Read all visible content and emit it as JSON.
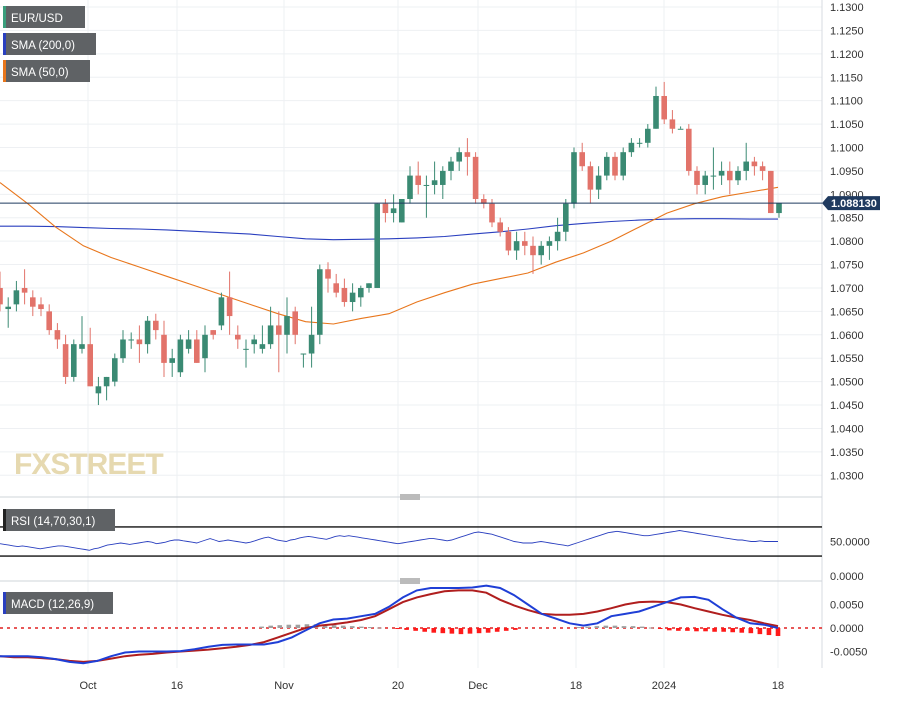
{
  "chart_data": {
    "type": "candlestick",
    "symbol": "EUR/USD",
    "watermark": "FXSTREET",
    "last_price": "1.088130",
    "x_labels": [
      "Oct",
      "16",
      "Nov",
      "20",
      "Dec",
      "18",
      "2024",
      "18"
    ],
    "price_ylim": [
      1.026,
      1.1315
    ],
    "price_ticks": [
      "1.1300",
      "1.1250",
      "1.1200",
      "1.1150",
      "1.1100",
      "1.1050",
      "1.1000",
      "1.0950",
      "1.0900",
      "1.0850",
      "1.0800",
      "1.0750",
      "1.0700",
      "1.0650",
      "1.0600",
      "1.0550",
      "1.0500",
      "1.0450",
      "1.0400",
      "1.0350",
      "1.0300"
    ],
    "indicators": [
      {
        "label": "SMA (200,0)",
        "color": "#2a3fbf"
      },
      {
        "label": "SMA (50,0)",
        "color": "#e8761c"
      }
    ],
    "candles": [
      [
        1.07,
        1.0735,
        1.065,
        1.0665
      ],
      [
        1.0655,
        1.068,
        1.0615,
        1.066
      ],
      [
        1.0665,
        1.0715,
        1.065,
        1.0695
      ],
      [
        1.07,
        1.074,
        1.0665,
        1.069
      ],
      [
        1.068,
        1.0695,
        1.064,
        1.066
      ],
      [
        1.0665,
        1.068,
        1.064,
        1.0655
      ],
      [
        1.065,
        1.0665,
        1.06,
        1.061
      ],
      [
        1.061,
        1.0625,
        1.057,
        1.059
      ],
      [
        1.058,
        1.06,
        1.0495,
        1.051
      ],
      [
        1.051,
        1.059,
        1.05,
        1.058
      ],
      [
        1.057,
        1.064,
        1.056,
        1.058
      ],
      [
        1.058,
        1.0615,
        1.049,
        1.049
      ],
      [
        1.0475,
        1.051,
        1.045,
        1.049
      ],
      [
        1.049,
        1.051,
        1.046,
        1.051
      ],
      [
        1.05,
        1.056,
        1.049,
        1.055
      ],
      [
        1.055,
        1.061,
        1.054,
        1.059
      ],
      [
        1.059,
        1.0605,
        1.057,
        1.059
      ],
      [
        1.059,
        1.062,
        1.054,
        1.058
      ],
      [
        1.058,
        1.064,
        1.056,
        1.063
      ],
      [
        1.063,
        1.0645,
        1.059,
        1.061
      ],
      [
        1.06,
        1.063,
        1.051,
        1.054
      ],
      [
        1.054,
        1.057,
        1.051,
        1.055
      ],
      [
        1.052,
        1.06,
        1.051,
        1.059
      ],
      [
        1.057,
        1.061,
        1.056,
        1.059
      ],
      [
        1.059,
        1.061,
        1.054,
        1.054
      ],
      [
        1.055,
        1.062,
        1.052,
        1.06
      ],
      [
        1.061,
        1.061,
        1.059,
        1.06
      ],
      [
        1.062,
        1.069,
        1.061,
        1.068
      ],
      [
        1.068,
        1.0735,
        1.06,
        1.064
      ],
      [
        1.06,
        1.062,
        1.057,
        1.059
      ],
      [
        1.057,
        1.059,
        1.053,
        1.057
      ],
      [
        1.058,
        1.06,
        1.056,
        1.059
      ],
      [
        1.057,
        1.062,
        1.056,
        1.058
      ],
      [
        1.058,
        1.066,
        1.057,
        1.062
      ],
      [
        1.062,
        1.065,
        1.052,
        1.06
      ],
      [
        1.06,
        1.068,
        1.056,
        1.064
      ],
      [
        1.065,
        1.066,
        1.058,
        1.06
      ],
      [
        1.056,
        1.056,
        1.053,
        1.056
      ],
      [
        1.056,
        1.066,
        1.053,
        1.06
      ],
      [
        1.06,
        1.075,
        1.058,
        1.074
      ],
      [
        1.074,
        1.0755,
        1.069,
        1.072
      ],
      [
        1.071,
        1.073,
        1.068,
        1.069
      ],
      [
        1.07,
        1.072,
        1.066,
        1.067
      ],
      [
        1.067,
        1.071,
        1.065,
        1.069
      ],
      [
        1.068,
        1.0705,
        1.066,
        1.07
      ],
      [
        1.07,
        1.071,
        1.069,
        1.071
      ],
      [
        1.07,
        1.088,
        1.07,
        1.088
      ],
      [
        1.088,
        1.089,
        1.084,
        1.086
      ],
      [
        1.086,
        1.09,
        1.084,
        1.087
      ],
      [
        1.084,
        1.089,
        1.084,
        1.089
      ],
      [
        1.089,
        1.096,
        1.088,
        1.094
      ],
      [
        1.094,
        1.097,
        1.09,
        1.092
      ],
      [
        1.092,
        1.094,
        1.085,
        1.092
      ],
      [
        1.092,
        1.097,
        1.09,
        1.093
      ],
      [
        1.092,
        1.096,
        1.089,
        1.095
      ],
      [
        1.095,
        1.098,
        1.093,
        1.097
      ],
      [
        1.097,
        1.1,
        1.095,
        1.099
      ],
      [
        1.099,
        1.102,
        1.094,
        1.098
      ],
      [
        1.098,
        1.099,
        1.088,
        1.089
      ],
      [
        1.089,
        1.09,
        1.087,
        1.088
      ],
      [
        1.088,
        1.089,
        1.083,
        1.084
      ],
      [
        1.084,
        1.085,
        1.081,
        1.082
      ],
      [
        1.082,
        1.083,
        1.077,
        1.078
      ],
      [
        1.078,
        1.082,
        1.076,
        1.08
      ],
      [
        1.08,
        1.082,
        1.077,
        1.079
      ],
      [
        1.079,
        1.081,
        1.073,
        1.077
      ],
      [
        1.077,
        1.08,
        1.075,
        1.079
      ],
      [
        1.079,
        1.081,
        1.076,
        1.08
      ],
      [
        1.08,
        1.085,
        1.078,
        1.082
      ],
      [
        1.082,
        1.089,
        1.08,
        1.088
      ],
      [
        1.088,
        1.1,
        1.087,
        1.099
      ],
      [
        1.099,
        1.101,
        1.095,
        1.096
      ],
      [
        1.096,
        1.097,
        1.088,
        1.091
      ],
      [
        1.091,
        1.096,
        1.089,
        1.094
      ],
      [
        1.094,
        1.099,
        1.093,
        1.098
      ],
      [
        1.098,
        1.099,
        1.093,
        1.094
      ],
      [
        1.094,
        1.1,
        1.093,
        1.099
      ],
      [
        1.099,
        1.102,
        1.098,
        1.101
      ],
      [
        1.101,
        1.102,
        1.1,
        1.101
      ],
      [
        1.101,
        1.105,
        1.1,
        1.104
      ],
      [
        1.104,
        1.113,
        1.104,
        1.111
      ],
      [
        1.111,
        1.114,
        1.105,
        1.106
      ],
      [
        1.106,
        1.108,
        1.103,
        1.104
      ],
      [
        1.104,
        1.1045,
        1.104,
        1.104
      ],
      [
        1.104,
        1.105,
        1.094,
        1.095
      ],
      [
        1.095,
        1.096,
        1.09,
        1.092
      ],
      [
        1.092,
        1.095,
        1.09,
        1.094
      ],
      [
        1.094,
        1.1,
        1.091,
        1.094
      ],
      [
        1.094,
        1.097,
        1.092,
        1.095
      ],
      [
        1.095,
        1.097,
        1.09,
        1.093
      ],
      [
        1.093,
        1.096,
        1.092,
        1.095
      ],
      [
        1.095,
        1.101,
        1.093,
        1.097
      ],
      [
        1.097,
        1.098,
        1.094,
        1.096
      ],
      [
        1.096,
        1.097,
        1.093,
        1.095
      ],
      [
        1.095,
        1.095,
        1.086,
        1.086
      ],
      [
        1.086,
        1.088,
        1.085,
        1.0881
      ]
    ],
    "sma200": [
      1.0832,
      1.0832,
      1.0831,
      1.0829,
      1.0827,
      1.0826,
      1.0824,
      1.0821,
      1.0818,
      1.0815,
      1.081,
      1.0805,
      1.0803,
      1.0804,
      1.0805,
      1.0807,
      1.081,
      1.0815,
      1.082,
      1.0826,
      1.0833,
      1.0838,
      1.0842,
      1.0845,
      1.0847,
      1.0848,
      1.0848,
      1.0847,
      1.0847
    ],
    "sma50": [
      1.0925,
      1.088,
      1.083,
      1.079,
      1.0765,
      1.0745,
      1.0725,
      1.0705,
      1.0685,
      1.0665,
      1.0645,
      1.0628,
      1.0623,
      1.0635,
      1.0645,
      1.067,
      1.069,
      1.0708,
      1.072,
      1.0732,
      1.0755,
      1.0775,
      1.08,
      1.083,
      1.086,
      1.088,
      1.0895,
      1.0905,
      1.0915
    ],
    "rsi": {
      "label": "RSI (14,70,30,1)",
      "level_label": "50.0000",
      "ticks": [
        "50.0000",
        "0.0000"
      ],
      "values": [
        47,
        46,
        45,
        44,
        43,
        44,
        43,
        42,
        41,
        40,
        41,
        42,
        43,
        44,
        44,
        43,
        42,
        41,
        40,
        39,
        38,
        40,
        41,
        43,
        45,
        46,
        47,
        48,
        47,
        46,
        47,
        48,
        49,
        50,
        49,
        47,
        48,
        49,
        51,
        52,
        52,
        51,
        50,
        49,
        48,
        50,
        52,
        54,
        52,
        50,
        51,
        52,
        51,
        50,
        49,
        48,
        49,
        51,
        53,
        55,
        56,
        54,
        52,
        51,
        50,
        52,
        53,
        55,
        56,
        57,
        56,
        55,
        54,
        53,
        55,
        57,
        58,
        57,
        58,
        57,
        56,
        55,
        54,
        53,
        52,
        51,
        50,
        49,
        48,
        47,
        48,
        49,
        50,
        51,
        52,
        53,
        54,
        54,
        53,
        52,
        51,
        52,
        54,
        56,
        58,
        60,
        62,
        63,
        62,
        61,
        60,
        58,
        56,
        54,
        52,
        50,
        49,
        48,
        48,
        48,
        49,
        50,
        49,
        48,
        47,
        46,
        45,
        44,
        46,
        48,
        50,
        52,
        54,
        56,
        58,
        60,
        62,
        63,
        64,
        63,
        62,
        61,
        60,
        59,
        58,
        58,
        59,
        60,
        61,
        62,
        63,
        64,
        65,
        64,
        63,
        62,
        61,
        60,
        59,
        58,
        57,
        56,
        55,
        54,
        53,
        52,
        52,
        51,
        50,
        50,
        51,
        50,
        50,
        50,
        50
      ]
    },
    "macd": {
      "label": "MACD (12,26,9)",
      "ticks": [
        "0.0050",
        "0.0000",
        "-0.0050"
      ],
      "macd_line": [
        -0.006,
        -0.006,
        -0.006,
        -0.0062,
        -0.0066,
        -0.0072,
        -0.0075,
        -0.007,
        -0.006,
        -0.0052,
        -0.005,
        -0.005,
        -0.005,
        -0.0049,
        -0.0045,
        -0.004,
        -0.0036,
        -0.0035,
        -0.0035,
        -0.0035,
        -0.003,
        -0.002,
        -0.0005,
        0.001,
        0.0018,
        0.002,
        0.0025,
        0.003,
        0.0045,
        0.0065,
        0.008,
        0.0085,
        0.0085,
        0.0085,
        0.0086,
        0.009,
        0.0085,
        0.007,
        0.005,
        0.003,
        0.002,
        0.001,
        0.0005,
        0.001,
        0.0025,
        0.003,
        0.0035,
        0.0045,
        0.0055,
        0.0065,
        0.0066,
        0.006,
        0.004,
        0.0022,
        0.001,
        0.0007,
        0.0
      ],
      "signal_line": [
        -0.006,
        -0.0062,
        -0.0062,
        -0.0064,
        -0.0066,
        -0.007,
        -0.0072,
        -0.007,
        -0.0065,
        -0.006,
        -0.0057,
        -0.0055,
        -0.0052,
        -0.005,
        -0.0048,
        -0.0046,
        -0.0043,
        -0.004,
        -0.0036,
        -0.003,
        -0.002,
        -0.001,
        0.0,
        0.0005,
        0.0008,
        0.0012,
        0.0017,
        0.0025,
        0.004,
        0.0055,
        0.0065,
        0.0072,
        0.0078,
        0.008,
        0.008,
        0.0075,
        0.006,
        0.0048,
        0.0038,
        0.003,
        0.0028,
        0.0028,
        0.003,
        0.0035,
        0.0042,
        0.005,
        0.0055,
        0.0056,
        0.0055,
        0.005,
        0.0042,
        0.0035,
        0.0028,
        0.0022,
        0.0017,
        0.001,
        0.0004
      ],
      "histogram": [
        0,
        0,
        0,
        0,
        0,
        0,
        0,
        0,
        0,
        0,
        0,
        0,
        0,
        0,
        0,
        0,
        0,
        0,
        0,
        0,
        0,
        0,
        0,
        0,
        0,
        0,
        0,
        0,
        0.0003,
        0.0005,
        0.0006,
        0.0007,
        0.0007,
        0.0008,
        0.0008,
        0.0007,
        0.0006,
        0.0005,
        0.0004,
        0.0003,
        0.0002,
        0.0001,
        0,
        -0.0002,
        -0.0004,
        -0.0006,
        -0.0008,
        -0.001,
        -0.0011,
        -0.0012,
        -0.0013,
        -0.0012,
        -0.0011,
        -0.001,
        -0.0008,
        -0.0006,
        -0.0004,
        0,
        0,
        0,
        0,
        0,
        0,
        0.0002,
        0.0003,
        0.0004,
        0.0005,
        0.0005,
        0.0004,
        0.0004,
        0.0003,
        0.0001,
        -0.0002,
        -0.0005,
        -0.0006,
        -0.0006,
        -0.0007,
        -0.0007,
        -0.0008,
        -0.0008,
        -0.0009,
        -0.001,
        -0.0011,
        -0.0013,
        -0.0015,
        -0.0017
      ]
    }
  }
}
